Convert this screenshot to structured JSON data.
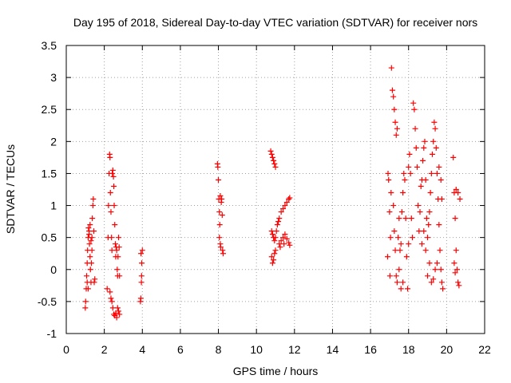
{
  "chart_data": {
    "type": "scatter",
    "title": "Day 195 of 2018, Sidereal Day-to-day VTEC variation (SDTVAR) for receiver nors",
    "xlabel": "GPS time / hours",
    "ylabel": "SDTVAR / TECUs",
    "xlim": [
      0,
      22
    ],
    "ylim": [
      -1,
      3.5
    ],
    "xticks": [
      0,
      2,
      4,
      6,
      8,
      10,
      12,
      14,
      16,
      18,
      20,
      22
    ],
    "xtick_labels": [
      "0",
      "2",
      "4",
      "6",
      "8",
      "10",
      "12",
      "14",
      "16",
      "18",
      "20",
      "22"
    ],
    "yticks": [
      -1,
      -0.5,
      0,
      0.5,
      1,
      1.5,
      2,
      2.5,
      3,
      3.5
    ],
    "ytick_labels": [
      "-1",
      "-0.5",
      "0",
      "0.5",
      "1",
      "1.5",
      "2",
      "2.5",
      "3",
      "3.5"
    ],
    "grid": true,
    "marker": "+",
    "series": [
      {
        "name": "SDTVAR",
        "color": "#ff0000",
        "points": [
          [
            1.0,
            -0.6
          ],
          [
            1.02,
            -0.5
          ],
          [
            1.05,
            -0.3
          ],
          [
            1.07,
            -0.1
          ],
          [
            1.1,
            0.1
          ],
          [
            1.12,
            0.3
          ],
          [
            1.15,
            0.5
          ],
          [
            1.17,
            0.65
          ],
          [
            1.2,
            0.6
          ],
          [
            1.22,
            0.4
          ],
          [
            1.25,
            0.2
          ],
          [
            1.27,
            0.0
          ],
          [
            1.3,
            -0.2
          ],
          [
            1.32,
            0.1
          ],
          [
            1.35,
            0.5
          ],
          [
            1.37,
            0.8
          ],
          [
            1.4,
            1.0
          ],
          [
            1.42,
            1.1
          ],
          [
            1.45,
            0.6
          ],
          [
            1.47,
            -0.2
          ],
          [
            1.5,
            -0.15
          ],
          [
            1.1,
            -0.2
          ],
          [
            1.15,
            -0.3
          ],
          [
            1.2,
            0.55
          ],
          [
            1.25,
            0.7
          ],
          [
            1.3,
            0.45
          ],
          [
            1.35,
            0.3
          ],
          [
            2.15,
            -0.3
          ],
          [
            2.2,
            0.5
          ],
          [
            2.22,
            1.0
          ],
          [
            2.25,
            1.5
          ],
          [
            2.28,
            1.8
          ],
          [
            2.3,
            1.75
          ],
          [
            2.32,
            1.2
          ],
          [
            2.35,
            0.9
          ],
          [
            2.38,
            0.5
          ],
          [
            2.4,
            0.3
          ],
          [
            2.42,
            1.5
          ],
          [
            2.45,
            1.55
          ],
          [
            2.48,
            1.45
          ],
          [
            2.5,
            1.3
          ],
          [
            2.52,
            1.0
          ],
          [
            2.55,
            0.7
          ],
          [
            2.58,
            0.4
          ],
          [
            2.6,
            0.2
          ],
          [
            2.62,
            0.35
          ],
          [
            2.65,
            0.3
          ],
          [
            2.68,
            0.0
          ],
          [
            2.7,
            -0.1
          ],
          [
            2.72,
            0.2
          ],
          [
            2.75,
            0.5
          ],
          [
            2.78,
            0.35
          ],
          [
            2.8,
            -0.1
          ],
          [
            2.4,
            -0.5
          ],
          [
            2.45,
            -0.6
          ],
          [
            2.5,
            -0.7
          ],
          [
            2.55,
            -0.72
          ],
          [
            2.6,
            -0.68
          ],
          [
            2.65,
            -0.75
          ],
          [
            2.7,
            -0.6
          ],
          [
            2.75,
            -0.65
          ],
          [
            2.8,
            -0.7
          ],
          [
            2.3,
            -0.35
          ],
          [
            2.35,
            -0.45
          ],
          [
            3.9,
            -0.5
          ],
          [
            3.92,
            -0.45
          ],
          [
            3.95,
            -0.2
          ],
          [
            3.97,
            0.1
          ],
          [
            4.0,
            0.3
          ],
          [
            3.93,
            0.25
          ],
          [
            3.96,
            -0.1
          ],
          [
            7.95,
            1.65
          ],
          [
            7.97,
            1.6
          ],
          [
            8.0,
            1.4
          ],
          [
            8.02,
            1.1
          ],
          [
            8.05,
            0.9
          ],
          [
            8.07,
            0.7
          ],
          [
            8.1,
            0.4
          ],
          [
            8.12,
            0.35
          ],
          [
            8.15,
            1.05
          ],
          [
            8.17,
            1.1
          ],
          [
            8.2,
            0.85
          ],
          [
            8.22,
            0.3
          ],
          [
            8.25,
            0.25
          ],
          [
            8.1,
            1.15
          ],
          [
            8.05,
            0.5
          ],
          [
            10.75,
            1.85
          ],
          [
            10.8,
            1.8
          ],
          [
            10.85,
            1.75
          ],
          [
            10.9,
            1.7
          ],
          [
            10.95,
            1.65
          ],
          [
            11.0,
            1.6
          ],
          [
            10.8,
            0.6
          ],
          [
            10.85,
            0.55
          ],
          [
            10.9,
            0.5
          ],
          [
            10.95,
            0.45
          ],
          [
            11.0,
            0.5
          ],
          [
            10.8,
            0.2
          ],
          [
            10.85,
            0.1
          ],
          [
            10.9,
            0.15
          ],
          [
            10.95,
            0.25
          ],
          [
            11.0,
            0.3
          ],
          [
            11.05,
            0.6
          ],
          [
            11.1,
            0.7
          ],
          [
            11.15,
            0.75
          ],
          [
            11.2,
            0.8
          ],
          [
            11.3,
            0.9
          ],
          [
            11.4,
            0.95
          ],
          [
            11.5,
            1.0
          ],
          [
            11.6,
            1.05
          ],
          [
            11.7,
            1.1
          ],
          [
            11.75,
            1.12
          ],
          [
            11.2,
            0.4
          ],
          [
            11.3,
            0.45
          ],
          [
            11.4,
            0.5
          ],
          [
            11.5,
            0.55
          ],
          [
            11.6,
            0.48
          ],
          [
            11.7,
            0.42
          ],
          [
            11.75,
            0.38
          ],
          [
            11.25,
            0.35
          ],
          [
            11.45,
            0.4
          ],
          [
            16.9,
            0.2
          ],
          [
            16.92,
            1.5
          ],
          [
            16.95,
            1.4
          ],
          [
            17.0,
            0.9
          ],
          [
            17.02,
            -0.1
          ],
          [
            17.05,
            0.5
          ],
          [
            17.08,
            1.2
          ],
          [
            17.1,
            3.15
          ],
          [
            17.15,
            2.8
          ],
          [
            17.2,
            2.7
          ],
          [
            17.25,
            2.5
          ],
          [
            17.3,
            2.3
          ],
          [
            17.35,
            2.1
          ],
          [
            17.4,
            2.2
          ],
          [
            17.2,
            1.0
          ],
          [
            17.25,
            0.6
          ],
          [
            17.3,
            0.3
          ],
          [
            17.35,
            -0.1
          ],
          [
            17.4,
            -0.2
          ],
          [
            17.45,
            0.5
          ],
          [
            17.5,
            0.8
          ],
          [
            17.55,
            0.3
          ],
          [
            17.6,
            0.4
          ],
          [
            17.65,
            0.9
          ],
          [
            17.7,
            1.2
          ],
          [
            17.75,
            1.5
          ],
          [
            17.8,
            1.4
          ],
          [
            17.85,
            0.8
          ],
          [
            17.9,
            0.2
          ],
          [
            17.95,
            -0.3
          ],
          [
            18.0,
            1.6
          ],
          [
            18.05,
            1.8
          ],
          [
            18.1,
            1.5
          ],
          [
            18.15,
            0.8
          ],
          [
            18.2,
            0.5
          ],
          [
            18.25,
            2.6
          ],
          [
            18.3,
            2.5
          ],
          [
            18.35,
            2.2
          ],
          [
            18.4,
            1.9
          ],
          [
            18.45,
            1.6
          ],
          [
            18.5,
            1.0
          ],
          [
            18.55,
            0.6
          ],
          [
            18.6,
            0.9
          ],
          [
            18.65,
            1.3
          ],
          [
            18.7,
            1.4
          ],
          [
            18.75,
            1.7
          ],
          [
            18.8,
            1.9
          ],
          [
            18.85,
            2.0
          ],
          [
            18.9,
            1.4
          ],
          [
            18.95,
            0.8
          ],
          [
            19.0,
            0.5
          ],
          [
            19.05,
            0.7
          ],
          [
            19.1,
            0.9
          ],
          [
            19.15,
            1.2
          ],
          [
            19.2,
            1.5
          ],
          [
            19.25,
            1.8
          ],
          [
            19.3,
            2.0
          ],
          [
            19.35,
            2.3
          ],
          [
            19.4,
            2.2
          ],
          [
            19.45,
            1.9
          ],
          [
            19.5,
            1.5
          ],
          [
            19.55,
            1.1
          ],
          [
            19.6,
            0.7
          ],
          [
            19.65,
            0.3
          ],
          [
            19.7,
            0.0
          ],
          [
            19.75,
            -0.2
          ],
          [
            19.8,
            -0.3
          ],
          [
            19.0,
            -0.1
          ],
          [
            19.1,
            0.1
          ],
          [
            19.2,
            -0.2
          ],
          [
            19.3,
            -0.15
          ],
          [
            19.4,
            0.0
          ],
          [
            19.5,
            0.1
          ],
          [
            18.7,
            0.4
          ],
          [
            18.8,
            0.6
          ],
          [
            18.9,
            0.3
          ],
          [
            19.6,
            1.6
          ],
          [
            19.7,
            1.4
          ],
          [
            19.75,
            1.1
          ],
          [
            17.5,
            0.0
          ],
          [
            17.6,
            -0.3
          ],
          [
            17.7,
            -0.2
          ],
          [
            18.0,
            0.4
          ],
          [
            20.35,
            1.75
          ],
          [
            20.4,
            1.2
          ],
          [
            20.45,
            0.8
          ],
          [
            20.5,
            0.3
          ],
          [
            20.55,
            0.0
          ],
          [
            20.6,
            -0.2
          ],
          [
            20.65,
            -0.25
          ],
          [
            20.5,
            1.25
          ],
          [
            20.6,
            1.2
          ],
          [
            20.7,
            1.1
          ],
          [
            20.4,
            0.1
          ],
          [
            20.45,
            -0.05
          ]
        ]
      }
    ]
  }
}
